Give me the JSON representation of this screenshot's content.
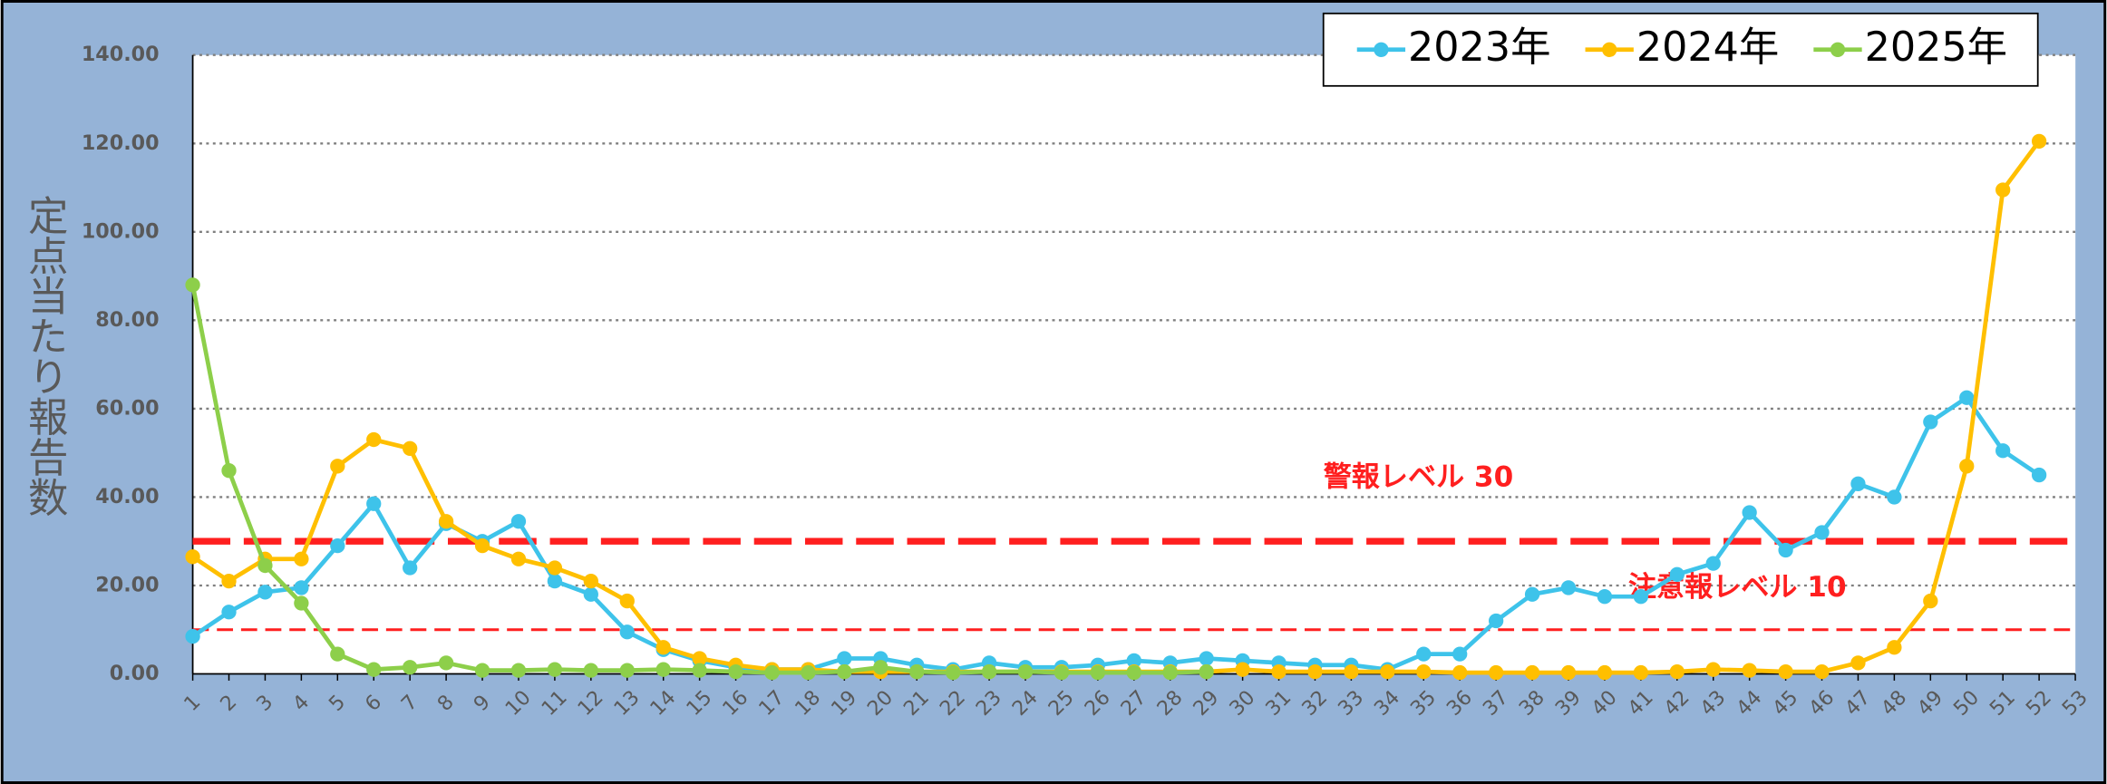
{
  "chart_data": {
    "type": "line",
    "y_label": "定点当たり報告数",
    "categories": [
      "1",
      "2",
      "3",
      "4",
      "5",
      "6",
      "7",
      "8",
      "9",
      "10",
      "11",
      "12",
      "13",
      "14",
      "15",
      "16",
      "17",
      "18",
      "19",
      "20",
      "21",
      "22",
      "23",
      "24",
      "25",
      "26",
      "27",
      "28",
      "29",
      "30",
      "31",
      "32",
      "33",
      "34",
      "35",
      "36",
      "37",
      "38",
      "39",
      "40",
      "41",
      "42",
      "43",
      "44",
      "45",
      "46",
      "47",
      "48",
      "49",
      "50",
      "51",
      "52",
      "53"
    ],
    "series": [
      {
        "name": "2023年",
        "color": "#3ec3ea",
        "values": [
          8.5,
          14,
          18.5,
          19.5,
          29,
          38.5,
          24,
          34,
          30,
          34.5,
          21,
          18,
          9.5,
          5.5,
          3,
          1.5,
          1,
          1,
          3.5,
          3.5,
          2,
          1,
          2.5,
          1.5,
          1.5,
          2,
          3,
          2.5,
          3.5,
          3,
          2.5,
          2,
          2,
          1,
          4.5,
          4.5,
          12,
          18,
          19.5,
          17.5,
          17.5,
          22.5,
          25,
          36.5,
          28,
          32,
          43,
          40,
          57,
          62.5,
          50.5,
          45,
          null
        ]
      },
      {
        "name": "2024年",
        "color": "#ffbf00",
        "values": [
          26.5,
          21,
          26,
          26,
          47,
          53,
          51,
          34.5,
          29,
          26,
          24,
          21,
          16.5,
          6,
          3.5,
          2,
          1,
          1,
          0.5,
          0.5,
          0.5,
          0.5,
          0.5,
          0.5,
          0.5,
          0.5,
          0.5,
          0.5,
          0.5,
          1,
          0.5,
          0.5,
          0.5,
          0.5,
          0.5,
          0.3,
          0.3,
          0.3,
          0.3,
          0.3,
          0.3,
          0.5,
          1,
          0.8,
          0.5,
          0.5,
          2.5,
          6,
          16.5,
          47,
          109.5,
          120.5,
          null
        ]
      },
      {
        "name": "2025年",
        "color": "#8dcf4a",
        "values": [
          88,
          46,
          24.5,
          16,
          4.5,
          1,
          1.5,
          2.5,
          0.8,
          0.8,
          1,
          0.8,
          0.8,
          1,
          0.8,
          0.5,
          0.3,
          0.3,
          0.5,
          1.5,
          0.5,
          0.3,
          0.5,
          0.5,
          0.3,
          0.3,
          0.3,
          0.3,
          0.5,
          null,
          null,
          null,
          null,
          null,
          null,
          null,
          null,
          null,
          null,
          null,
          null,
          null,
          null,
          null,
          null,
          null,
          null,
          null,
          null,
          null,
          null,
          null,
          null
        ]
      }
    ],
    "ylim": [
      0,
      140
    ],
    "yticks": [
      {
        "value": 0,
        "label": "0.00"
      },
      {
        "value": 20,
        "label": "20.00"
      },
      {
        "value": 40,
        "label": "40.00"
      },
      {
        "value": 60,
        "label": "60.00"
      },
      {
        "value": 80,
        "label": "80.00"
      },
      {
        "value": 100,
        "label": "100.00"
      },
      {
        "value": 120,
        "label": "120.00"
      },
      {
        "value": 140,
        "label": "140.00"
      }
    ],
    "grid": true,
    "legend": "top-right",
    "reference_lines": [
      {
        "value": 30,
        "label": "警報レベル 30",
        "color": "#ff1f1f"
      },
      {
        "value": 10,
        "label": "注意報レベル 10",
        "color": "#ff1f1f"
      }
    ]
  }
}
